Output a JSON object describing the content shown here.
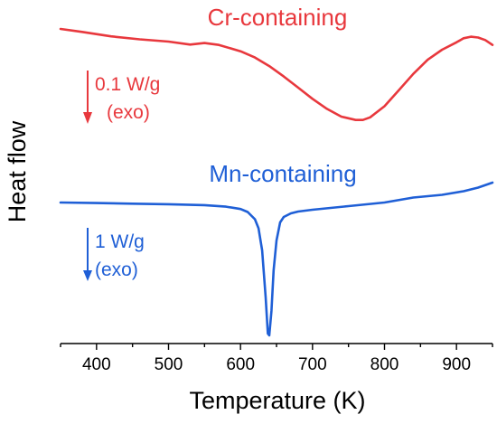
{
  "chart_data": {
    "type": "line",
    "xlabel": "Temperature (K)",
    "ylabel": "Heat flow",
    "xlim": [
      350,
      950
    ],
    "x_ticks": [
      400,
      500,
      600,
      700,
      800,
      900
    ],
    "grid": false,
    "series": [
      {
        "name": "Cr-containing",
        "color": "#e8383d",
        "scale_label": "0.1 W/g",
        "direction_label": "(exo)",
        "x": [
          350,
          380,
          420,
          460,
          500,
          530,
          550,
          570,
          600,
          620,
          640,
          660,
          680,
          700,
          720,
          740,
          760,
          770,
          780,
          800,
          820,
          840,
          860,
          880,
          900,
          910,
          920,
          930,
          940,
          950
        ],
        "y": [
          0.0,
          -0.008,
          -0.02,
          -0.028,
          -0.034,
          -0.042,
          -0.038,
          -0.043,
          -0.06,
          -0.077,
          -0.1,
          -0.128,
          -0.158,
          -0.188,
          -0.215,
          -0.236,
          -0.245,
          -0.245,
          -0.238,
          -0.208,
          -0.165,
          -0.121,
          -0.083,
          -0.056,
          -0.036,
          -0.025,
          -0.021,
          -0.023,
          -0.03,
          -0.043
        ]
      },
      {
        "name": "Mn-containing",
        "color": "#1f5fd6",
        "scale_label": "1 W/g",
        "direction_label": "(exo)",
        "x": [
          350,
          400,
          450,
          500,
          550,
          580,
          600,
          610,
          620,
          625,
          630,
          635,
          638,
          640,
          643,
          646,
          650,
          655,
          660,
          670,
          680,
          700,
          750,
          800,
          840,
          880,
          910,
          930,
          950
        ],
        "y": [
          0.0,
          -0.006,
          -0.013,
          -0.019,
          -0.029,
          -0.046,
          -0.072,
          -0.105,
          -0.185,
          -0.285,
          -0.53,
          -1.05,
          -1.45,
          -1.47,
          -1.2,
          -0.75,
          -0.42,
          -0.22,
          -0.16,
          -0.12,
          -0.1,
          -0.08,
          -0.04,
          0.0,
          0.055,
          0.085,
          0.125,
          0.165,
          0.22
        ]
      }
    ]
  }
}
